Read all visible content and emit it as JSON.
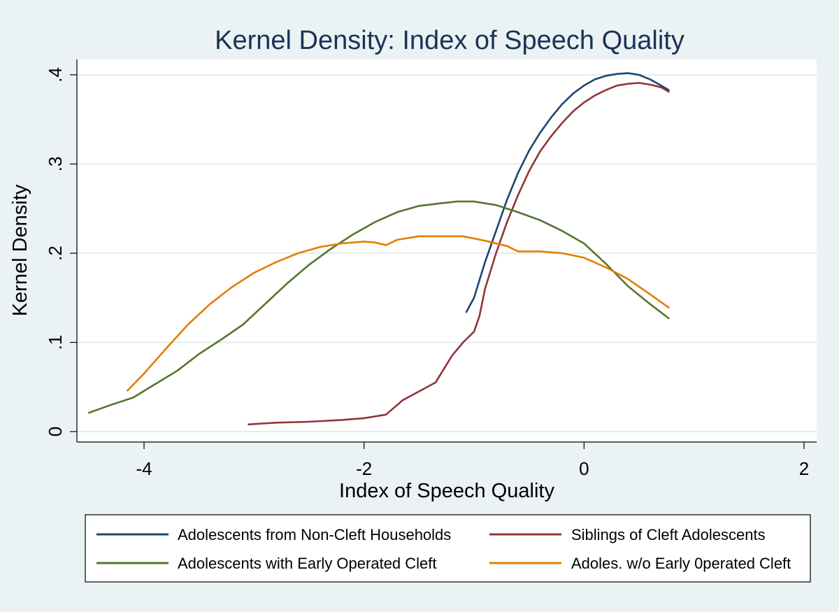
{
  "chart_data": {
    "type": "line",
    "title": "Kernel Density: Index of Speech Quality",
    "xlabel": "Index of Speech Quality",
    "ylabel": "Kernel Density",
    "xlim": [
      -4.55,
      2.1
    ],
    "ylim": [
      0,
      0.4
    ],
    "xticks": [
      -4,
      -2,
      0,
      2
    ],
    "xtick_labels": [
      "-4",
      "-2",
      "0",
      "2"
    ],
    "yticks": [
      0,
      0.1,
      0.2,
      0.3,
      0.4
    ],
    "ytick_labels": [
      "0",
      ".1",
      ".2",
      ".3",
      ".4"
    ],
    "grid": true,
    "legend_position": "bottom",
    "series": [
      {
        "name": "Adolescents from Non-Cleft Households",
        "color": "#1a476f",
        "x": [
          -1.07,
          -1.0,
          -0.9,
          -0.8,
          -0.7,
          -0.6,
          -0.5,
          -0.4,
          -0.3,
          -0.2,
          -0.1,
          0.0,
          0.1,
          0.2,
          0.3,
          0.4,
          0.5,
          0.6,
          0.7,
          0.77
        ],
        "y": [
          0.134,
          0.15,
          0.19,
          0.225,
          0.26,
          0.29,
          0.315,
          0.335,
          0.352,
          0.367,
          0.379,
          0.388,
          0.395,
          0.399,
          0.401,
          0.402,
          0.4,
          0.395,
          0.388,
          0.383
        ]
      },
      {
        "name": "Siblings of Cleft Adolescents",
        "color": "#90353b",
        "x": [
          -3.05,
          -2.8,
          -2.5,
          -2.2,
          -2.0,
          -1.8,
          -1.65,
          -1.5,
          -1.35,
          -1.2,
          -1.1,
          -1.0,
          -0.95,
          -0.9,
          -0.8,
          -0.7,
          -0.6,
          -0.5,
          -0.4,
          -0.3,
          -0.2,
          -0.1,
          0.0,
          0.1,
          0.2,
          0.3,
          0.4,
          0.5,
          0.6,
          0.7,
          0.77
        ],
        "y": [
          0.008,
          0.01,
          0.011,
          0.013,
          0.015,
          0.019,
          0.035,
          0.045,
          0.055,
          0.085,
          0.1,
          0.112,
          0.13,
          0.16,
          0.2,
          0.235,
          0.265,
          0.292,
          0.314,
          0.331,
          0.346,
          0.359,
          0.369,
          0.377,
          0.383,
          0.388,
          0.39,
          0.391,
          0.389,
          0.386,
          0.381
        ]
      },
      {
        "name": "Adolescents with Early Operated Cleft",
        "color": "#55752f",
        "x": [
          -4.5,
          -4.3,
          -4.1,
          -3.9,
          -3.7,
          -3.5,
          -3.3,
          -3.1,
          -2.9,
          -2.7,
          -2.5,
          -2.3,
          -2.1,
          -1.9,
          -1.7,
          -1.5,
          -1.3,
          -1.15,
          -1.0,
          -0.8,
          -0.6,
          -0.4,
          -0.2,
          0.0,
          0.2,
          0.4,
          0.6,
          0.77
        ],
        "y": [
          0.021,
          0.03,
          0.038,
          0.053,
          0.068,
          0.087,
          0.103,
          0.12,
          0.143,
          0.166,
          0.187,
          0.205,
          0.221,
          0.235,
          0.246,
          0.253,
          0.256,
          0.258,
          0.258,
          0.254,
          0.246,
          0.237,
          0.225,
          0.211,
          0.188,
          0.163,
          0.143,
          0.127
        ]
      },
      {
        "name": "Adoles. w/o Early 0perated Cleft",
        "color": "#e37e00",
        "x": [
          -4.15,
          -4.0,
          -3.8,
          -3.6,
          -3.4,
          -3.2,
          -3.0,
          -2.8,
          -2.6,
          -2.4,
          -2.2,
          -2.0,
          -1.9,
          -1.8,
          -1.7,
          -1.5,
          -1.3,
          -1.1,
          -0.9,
          -0.7,
          -0.6,
          -0.4,
          -0.2,
          0.0,
          0.2,
          0.4,
          0.6,
          0.77
        ],
        "y": [
          0.046,
          0.065,
          0.093,
          0.12,
          0.143,
          0.162,
          0.178,
          0.19,
          0.2,
          0.207,
          0.211,
          0.213,
          0.212,
          0.209,
          0.215,
          0.219,
          0.219,
          0.219,
          0.214,
          0.208,
          0.202,
          0.202,
          0.2,
          0.195,
          0.184,
          0.171,
          0.154,
          0.139
        ]
      }
    ]
  }
}
